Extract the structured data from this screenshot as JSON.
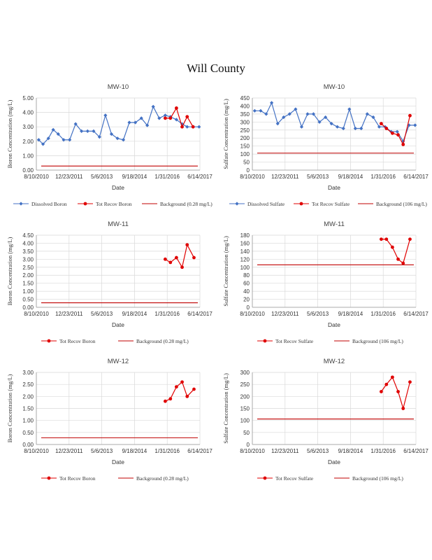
{
  "page": {
    "title": "Will County"
  },
  "chart_data": [
    {
      "type": "line",
      "title": "MW-10",
      "xlabel": "Date",
      "ylabel": "Boron Concentration (mg/L)",
      "x_ticks": [
        "8/10/2010",
        "12/23/2011",
        "5/6/2013",
        "9/18/2014",
        "1/31/2016",
        "6/14/2017"
      ],
      "y_ticks": [
        "0.00",
        "1.00",
        "2.00",
        "3.00",
        "4.00",
        "5.00"
      ],
      "ylim": [
        0,
        5
      ],
      "series": [
        {
          "name": "Dissolved Boron",
          "color": "#4472C4",
          "marker": "diamond",
          "x": [
            "2010-09-15",
            "2010-11-20",
            "2011-02-10",
            "2011-04-25",
            "2011-07-10",
            "2011-10-01",
            "2012-01-01",
            "2012-04-01",
            "2012-07-01",
            "2012-10-01",
            "2013-01-01",
            "2013-04-01",
            "2013-07-01",
            "2013-10-01",
            "2014-01-01",
            "2014-04-01",
            "2014-07-01",
            "2014-10-01",
            "2015-01-01",
            "2015-04-01",
            "2015-07-01",
            "2015-10-01",
            "2016-01-01",
            "2016-03-20",
            "2016-06-20",
            "2016-09-15",
            "2016-12-01",
            "2017-03-01",
            "2017-06-01"
          ],
          "y": [
            2.1,
            1.8,
            2.2,
            2.8,
            2.5,
            2.1,
            2.1,
            3.2,
            2.7,
            2.7,
            2.7,
            2.3,
            3.8,
            2.5,
            2.2,
            2.1,
            3.3,
            3.3,
            3.6,
            3.1,
            4.4,
            3.6,
            3.8,
            3.7,
            3.5,
            3.2,
            3.0,
            3.0,
            3.0
          ]
        },
        {
          "name": "Tot Recov Boron",
          "color": "#E00000",
          "marker": "circle",
          "x": [
            "2016-01-01",
            "2016-03-20",
            "2016-06-20",
            "2016-09-15",
            "2016-12-01",
            "2017-03-01"
          ],
          "y": [
            3.6,
            3.6,
            4.3,
            3.0,
            3.7,
            3.0
          ]
        },
        {
          "name": "Background  (0.28 mg/L)",
          "color": "#C00000",
          "marker": "none",
          "constant": 0.28
        }
      ]
    },
    {
      "type": "line",
      "title": "MW-10",
      "xlabel": "Date",
      "ylabel": "Sulfate Concentration (mg/L)",
      "x_ticks": [
        "8/10/2010",
        "12/23/2011",
        "5/6/2013",
        "9/18/2014",
        "1/31/2016",
        "6/14/2017"
      ],
      "y_ticks": [
        "0",
        "50",
        "100",
        "150",
        "200",
        "250",
        "300",
        "350",
        "400",
        "450"
      ],
      "ylim": [
        0,
        450
      ],
      "series": [
        {
          "name": "Dissolved Sulfate",
          "color": "#4472C4",
          "marker": "diamond",
          "x": [
            "2010-09-15",
            "2010-12-15",
            "2011-03-10",
            "2011-06-01",
            "2011-09-01",
            "2011-12-01",
            "2012-03-01",
            "2012-06-01",
            "2012-09-01",
            "2012-12-01",
            "2013-03-01",
            "2013-06-01",
            "2013-09-01",
            "2013-12-01",
            "2014-03-01",
            "2014-06-01",
            "2014-09-01",
            "2014-12-01",
            "2015-03-01",
            "2015-06-01",
            "2015-09-01",
            "2015-12-01",
            "2016-03-01",
            "2016-06-01",
            "2016-09-01",
            "2016-12-01",
            "2017-03-01",
            "2017-06-01"
          ],
          "y": [
            370,
            370,
            350,
            420,
            290,
            330,
            350,
            380,
            270,
            350,
            350,
            300,
            330,
            290,
            270,
            260,
            380,
            260,
            260,
            350,
            330,
            270,
            270,
            240,
            240,
            180,
            280,
            280
          ]
        },
        {
          "name": "Tot Recov Sulfate",
          "color": "#E00000",
          "marker": "circle",
          "x": [
            "2016-01-01",
            "2016-03-20",
            "2016-06-20",
            "2016-09-15",
            "2016-12-01",
            "2017-03-15"
          ],
          "y": [
            290,
            260,
            230,
            220,
            160,
            340
          ]
        },
        {
          "name": "Background  (106 mg/L)",
          "color": "#C00000",
          "marker": "none",
          "constant": 106
        }
      ]
    },
    {
      "type": "line",
      "title": "MW-11",
      "xlabel": "Date",
      "ylabel": "Boron Concentration (mg/L)",
      "x_ticks": [
        "8/10/2010",
        "12/23/2011",
        "5/6/2013",
        "9/18/2014",
        "1/31/2016",
        "6/14/2017"
      ],
      "y_ticks": [
        "0.00",
        "0.50",
        "1.00",
        "1.50",
        "2.00",
        "2.50",
        "3.00",
        "3.50",
        "4.00",
        "4.50"
      ],
      "ylim": [
        0,
        4.5
      ],
      "series": [
        {
          "name": "Tot Recov Boron",
          "color": "#E00000",
          "marker": "circle",
          "x": [
            "2016-01-01",
            "2016-03-20",
            "2016-06-20",
            "2016-09-15",
            "2016-12-01",
            "2017-03-15"
          ],
          "y": [
            3.0,
            2.8,
            3.1,
            2.5,
            3.9,
            3.1
          ]
        },
        {
          "name": "Background  (0.28 mg/L)",
          "color": "#C00000",
          "marker": "none",
          "constant": 0.28
        }
      ]
    },
    {
      "type": "line",
      "title": "MW-11",
      "xlabel": "Date",
      "ylabel": "Sulfate Concentration (mg/L)",
      "x_ticks": [
        "8/10/2010",
        "12/23/2011",
        "5/6/2013",
        "9/18/2014",
        "1/31/2016",
        "6/14/2017"
      ],
      "y_ticks": [
        "0",
        "20",
        "40",
        "60",
        "80",
        "100",
        "120",
        "140",
        "160",
        "180"
      ],
      "ylim": [
        0,
        180
      ],
      "series": [
        {
          "name": "Tot Recov Sulfate",
          "color": "#E00000",
          "marker": "circle",
          "x": [
            "2016-01-01",
            "2016-03-20",
            "2016-06-20",
            "2016-09-15",
            "2016-12-01",
            "2017-03-15"
          ],
          "y": [
            170,
            170,
            150,
            120,
            110,
            170
          ]
        },
        {
          "name": "Background  (106 mg/L)",
          "color": "#C00000",
          "marker": "none",
          "constant": 106
        }
      ]
    },
    {
      "type": "line",
      "title": "MW-12",
      "xlabel": "Date",
      "ylabel": "Boron Concentration (mg/L)",
      "x_ticks": [
        "8/10/2010",
        "12/23/2011",
        "5/6/2013",
        "9/18/2014",
        "1/31/2016",
        "6/14/2017"
      ],
      "y_ticks": [
        "0.00",
        "0.50",
        "1.00",
        "1.50",
        "2.00",
        "2.50",
        "3.00"
      ],
      "ylim": [
        0,
        3
      ],
      "series": [
        {
          "name": "Tot Recov Boron",
          "color": "#E00000",
          "marker": "circle",
          "x": [
            "2016-01-01",
            "2016-03-20",
            "2016-06-20",
            "2016-09-15",
            "2016-12-01",
            "2017-03-15"
          ],
          "y": [
            1.8,
            1.9,
            2.4,
            2.6,
            2.0,
            2.3
          ]
        },
        {
          "name": "Background  (0.28 mg/L)",
          "color": "#C00000",
          "marker": "none",
          "constant": 0.28
        }
      ]
    },
    {
      "type": "line",
      "title": "MW-12",
      "xlabel": "Date",
      "ylabel": "Sulfate Concentration (mg/L)",
      "x_ticks": [
        "8/10/2010",
        "12/23/2011",
        "5/6/2013",
        "9/18/2014",
        "1/31/2016",
        "6/14/2017"
      ],
      "y_ticks": [
        "0",
        "50",
        "100",
        "150",
        "200",
        "250",
        "300"
      ],
      "ylim": [
        0,
        300
      ],
      "series": [
        {
          "name": "Tot Recov Sulfate",
          "color": "#E00000",
          "marker": "circle",
          "x": [
            "2016-01-01",
            "2016-03-20",
            "2016-06-20",
            "2016-09-15",
            "2016-12-01",
            "2017-03-15"
          ],
          "y": [
            220,
            250,
            280,
            220,
            150,
            260
          ]
        },
        {
          "name": "Background  (106 mg/L)",
          "color": "#C00000",
          "marker": "none",
          "constant": 106
        }
      ]
    }
  ]
}
